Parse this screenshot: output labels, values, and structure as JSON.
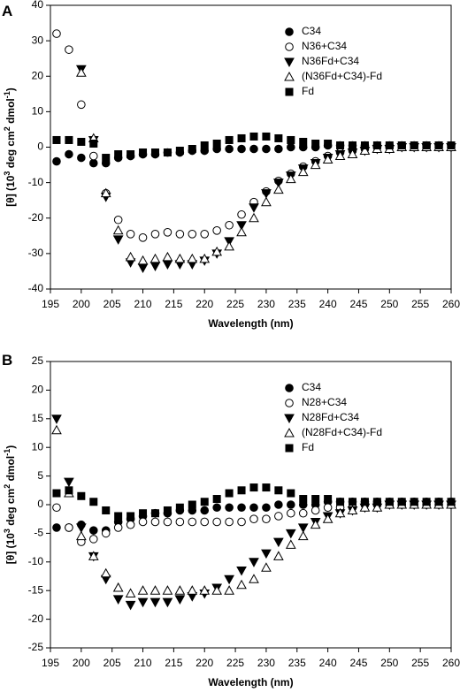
{
  "chart_data": [
    {
      "type": "scatter",
      "panel_label": "A",
      "x_label": "Wavelength (nm)",
      "y_label": [
        "[θ] (10",
        "3",
        " deg cm",
        "2",
        " dmol",
        "-1",
        ")"
      ],
      "xlim": [
        195,
        260
      ],
      "xticks": [
        195,
        200,
        205,
        210,
        215,
        220,
        225,
        230,
        235,
        240,
        245,
        250,
        255,
        260
      ],
      "ylim": [
        -40,
        40
      ],
      "yticks": [
        -40,
        -30,
        -20,
        -10,
        0,
        10,
        20,
        30,
        40
      ],
      "legend": "upper right",
      "x": [
        196,
        198,
        200,
        202,
        204,
        206,
        208,
        210,
        212,
        214,
        216,
        218,
        220,
        222,
        224,
        226,
        228,
        230,
        232,
        234,
        236,
        238,
        240,
        242,
        244,
        246,
        248,
        250,
        252,
        254,
        256,
        258,
        260
      ],
      "series": [
        {
          "name": "C34",
          "color": "#000000",
          "marker": "circle",
          "filled": true,
          "values": [
            -4,
            -2,
            -3,
            -4.5,
            -4.5,
            -3,
            -2.5,
            -2,
            -2,
            -1.5,
            -1.5,
            -1,
            -1,
            -0.5,
            -0.5,
            -0.5,
            -0.5,
            -0.5,
            -0.5,
            0,
            0,
            0,
            0.5,
            0.5,
            0.5,
            0.5,
            0.5,
            0.5,
            0.5,
            0.5,
            0.5,
            0.5,
            0.5
          ]
        },
        {
          "name": "N36+C34",
          "color": "#000000",
          "marker": "circle",
          "filled": false,
          "values": [
            32,
            27.5,
            12,
            -2.5,
            -13,
            -20.5,
            -24.5,
            -25.5,
            -24.5,
            -24,
            -24.5,
            -24.5,
            -24.5,
            -23.5,
            -22,
            -19,
            -15.5,
            -12.5,
            -9.5,
            -7.5,
            -5.5,
            -4,
            -2.5,
            -1.5,
            -1,
            -0.5,
            0,
            0,
            0,
            0,
            0,
            0,
            0
          ]
        },
        {
          "name": "N36Fd+C34",
          "color": "#000000",
          "marker": "triangle-down",
          "filled": true,
          "values": [
            null,
            null,
            22,
            2,
            -14,
            -26,
            -32.5,
            -34,
            -33.5,
            -33,
            -33,
            -33,
            -32,
            -30,
            -26.5,
            -22,
            -17,
            -13,
            -10,
            -8,
            -6,
            -4.5,
            -3,
            -2,
            -1.5,
            -1,
            -0.5,
            -0.5,
            0,
            0,
            0,
            0,
            0
          ]
        },
        {
          "name": "(N36Fd+C34)-Fd",
          "color": "#000000",
          "marker": "triangle-up",
          "filled": false,
          "values": [
            null,
            null,
            21,
            2.5,
            -13,
            -23.5,
            -31,
            -32,
            -31.5,
            -31,
            -31.5,
            -31.5,
            -31.5,
            -29.5,
            -28,
            -24,
            -20,
            -15.5,
            -12,
            -9,
            -7,
            -5,
            -3.5,
            -2.5,
            -2,
            -1,
            -0.5,
            -0.5,
            0,
            0,
            0,
            0,
            0
          ]
        },
        {
          "name": "Fd",
          "color": "#000000",
          "marker": "square",
          "filled": true,
          "values": [
            2,
            2,
            1.5,
            1,
            -3,
            -2,
            -2,
            -1.5,
            -1.5,
            -1.5,
            -1,
            -0.5,
            0.5,
            1,
            2,
            2.5,
            3,
            3,
            2.5,
            2,
            1.5,
            1,
            1,
            0.5,
            0.5,
            0.5,
            0.5,
            0.5,
            0.5,
            0.5,
            0.5,
            0.5,
            0.5
          ]
        }
      ]
    },
    {
      "type": "scatter",
      "panel_label": "B",
      "x_label": "Wavelength (nm)",
      "y_label": [
        "[θ] (10",
        "3",
        " deg cm",
        "2",
        " dmol",
        "-1",
        ")"
      ],
      "xlim": [
        195,
        260
      ],
      "xticks": [
        195,
        200,
        205,
        210,
        215,
        220,
        225,
        230,
        235,
        240,
        245,
        250,
        255,
        260
      ],
      "ylim": [
        -25,
        25
      ],
      "yticks": [
        -25,
        -20,
        -15,
        -10,
        -5,
        0,
        5,
        10,
        15,
        20,
        25
      ],
      "legend": "upper right",
      "x": [
        196,
        198,
        200,
        202,
        204,
        206,
        208,
        210,
        212,
        214,
        216,
        218,
        220,
        222,
        224,
        226,
        228,
        230,
        232,
        234,
        236,
        238,
        240,
        242,
        244,
        246,
        248,
        250,
        252,
        254,
        256,
        258,
        260
      ],
      "series": [
        {
          "name": "C34",
          "color": "#000000",
          "marker": "circle",
          "filled": true,
          "values": [
            -4,
            -4,
            -3.5,
            -4.5,
            -4.5,
            -3,
            -2.5,
            -2,
            -1.5,
            -1.5,
            -1,
            -1,
            -1,
            -0.5,
            -0.5,
            -0.5,
            -0.5,
            -0.5,
            0,
            0,
            0,
            0,
            0.5,
            0.5,
            0.5,
            0.5,
            0.5,
            0.5,
            0.5,
            0.5,
            0.5,
            0.5,
            0.5
          ]
        },
        {
          "name": "N28+C34",
          "color": "#000000",
          "marker": "circle",
          "filled": false,
          "values": [
            -0.5,
            -4,
            -6.5,
            -6,
            -5,
            -4,
            -3.5,
            -3,
            -3,
            -3,
            -3,
            -3,
            -3,
            -3,
            -3,
            -3,
            -2.5,
            -2.5,
            -2,
            -1.5,
            -1.5,
            -1,
            -0.5,
            -0.5,
            -0.5,
            0,
            0,
            0,
            0,
            0,
            0,
            0,
            0
          ]
        },
        {
          "name": "N28Fd+C34",
          "color": "#000000",
          "marker": "triangle-down",
          "filled": true,
          "values": [
            15,
            4,
            -4,
            -9,
            -13,
            -16.5,
            -17.5,
            -17,
            -17,
            -17,
            -16.5,
            -16,
            -15.5,
            -14.5,
            -13,
            -11.5,
            -10,
            -8.5,
            -6.5,
            -5,
            -4,
            -3,
            -2,
            -1.5,
            -1,
            -0.5,
            -0.5,
            0,
            0,
            0,
            0,
            0,
            0
          ]
        },
        {
          "name": "(N28Fd+C34)-Fd",
          "color": "#000000",
          "marker": "triangle-up",
          "filled": false,
          "values": [
            13,
            2,
            -5.5,
            -9,
            -12,
            -14.5,
            -15.5,
            -15,
            -15,
            -15,
            -15,
            -15,
            -15,
            -15,
            -15,
            -14,
            -13,
            -11,
            -9,
            -7,
            -5.5,
            -3.5,
            -2.5,
            -1.5,
            -1,
            -0.5,
            -0.5,
            0,
            0,
            0,
            0,
            0,
            0
          ]
        },
        {
          "name": "Fd",
          "color": "#000000",
          "marker": "square",
          "filled": true,
          "values": [
            2,
            2.5,
            1.5,
            0.5,
            -1,
            -2,
            -2,
            -1.5,
            -1.5,
            -1,
            -0.5,
            0,
            0.5,
            1,
            2,
            2.5,
            3,
            3,
            2.5,
            2,
            1,
            1,
            1,
            0.5,
            0.5,
            0.5,
            0.5,
            0.5,
            0.5,
            0.5,
            0.5,
            0.5,
            0.5
          ]
        }
      ]
    }
  ]
}
